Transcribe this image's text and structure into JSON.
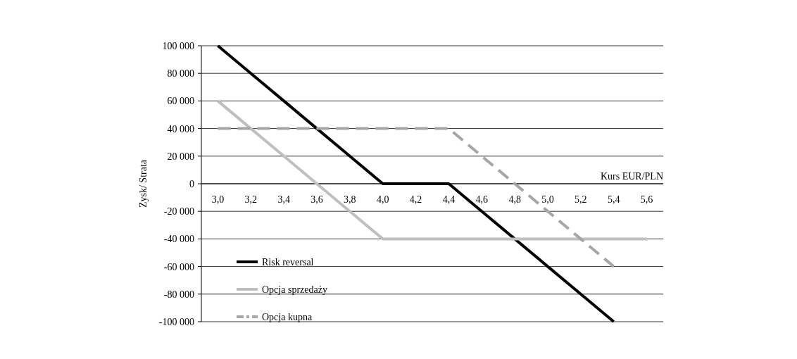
{
  "chart_data": {
    "type": "line",
    "xlabel": "Kurs EUR/PLN",
    "ylabel": "Zysk/ Strata",
    "categories": [
      "3,0",
      "3,2",
      "3,4",
      "3,6",
      "3,8",
      "4,0",
      "4,2",
      "4,4",
      "4,6",
      "4,8",
      "5,0",
      "5,2",
      "5,4",
      "5,6"
    ],
    "series": [
      {
        "name": "Risk reversal",
        "color": "#000000",
        "line_style": "solid",
        "values": [
          100000,
          80000,
          60000,
          40000,
          20000,
          0,
          0,
          0,
          -20000,
          -40000,
          -60000,
          -80000,
          -100000,
          null
        ]
      },
      {
        "name": "Opcja sprzedaży",
        "color": "#bfbfbf",
        "line_style": "solid",
        "values": [
          60000,
          40000,
          20000,
          0,
          -20000,
          -40000,
          -40000,
          -40000,
          -40000,
          -40000,
          -40000,
          -40000,
          -40000,
          -40000
        ]
      },
      {
        "name": "Opcja kupna",
        "color": "#a6a6a6",
        "line_style": "dashed",
        "values": [
          40000,
          40000,
          40000,
          40000,
          40000,
          40000,
          40000,
          40000,
          20000,
          0,
          -20000,
          -40000,
          -60000,
          null
        ]
      }
    ],
    "ylim": [
      -100000,
      100000
    ],
    "yticks": [
      {
        "value": -100000,
        "label": "-100 000"
      },
      {
        "value": -80000,
        "label": "-80 000"
      },
      {
        "value": -60000,
        "label": "-60 000"
      },
      {
        "value": -40000,
        "label": "-40 000"
      },
      {
        "value": -20000,
        "label": "-20 000"
      },
      0,
      {
        "value": 20000,
        "label": "20 000"
      },
      {
        "value": 40000,
        "label": "40 000"
      },
      {
        "value": 60000,
        "label": "60 000"
      },
      {
        "value": 80000,
        "label": "80 000"
      },
      {
        "value": 100000,
        "label": "100 000"
      }
    ],
    "grid": "y",
    "legend": "bottom left",
    "marker": "none"
  }
}
